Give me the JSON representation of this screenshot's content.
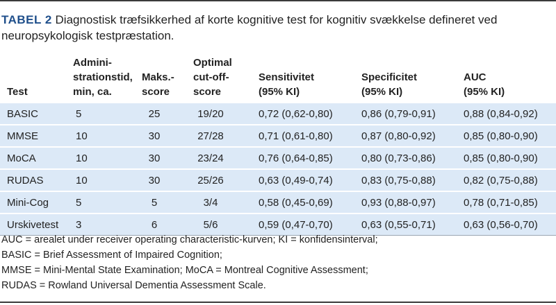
{
  "title": {
    "label": "TABEL 2",
    "text": "Diagnostisk træfsikkerhed af korte kognitive test for kognitiv svækkelse defineret ved neuropsykologisk testpræstation."
  },
  "headers": {
    "test": "Test",
    "admin": [
      "Admini-",
      "strationstid,",
      "min, ca."
    ],
    "maks": [
      "Maks.-",
      "score"
    ],
    "cutoff": [
      "Optimal",
      "cut-off-",
      "score"
    ],
    "sens": [
      "Sensitivitet",
      "(95% KI)"
    ],
    "spec": [
      "Specificitet",
      "(95% KI)"
    ],
    "auc": [
      "AUC",
      "(95% KI)"
    ]
  },
  "rows": [
    {
      "test": "BASIC",
      "admin": "5",
      "maks": "25",
      "cutoff": "19/20",
      "sens": "0,72 (0,62-0,80)",
      "spec": "0,86 (0,79-0,91)",
      "auc": "0,88 (0,84-0,92)"
    },
    {
      "test": "MMSE",
      "admin": "10",
      "maks": "30",
      "cutoff": "27/28",
      "sens": "0,71 (0,61-0,80)",
      "spec": "0,87 (0,80-0,92)",
      "auc": "0,85 (0,80-0,90)"
    },
    {
      "test": "MoCA",
      "admin": "10",
      "maks": "30",
      "cutoff": "23/24",
      "sens": "0,76 (0,64-0,85)",
      "spec": "0,80 (0,73-0,86)",
      "auc": "0,85 (0,80-0,90)"
    },
    {
      "test": "RUDAS",
      "admin": "10",
      "maks": "30",
      "cutoff": "25/26",
      "sens": "0,63 (0,49-0,74)",
      "spec": "0,83 (0,75-0,88)",
      "auc": "0,82 (0,75-0,88)"
    },
    {
      "test": "Mini-Cog",
      "admin": "5",
      "maks": "5",
      "cutoff": "3/4",
      "sens": "0,58 (0,45-0,69)",
      "spec": "0,93 (0,88-0,97)",
      "auc": "0,78 (0,71-0,85)"
    },
    {
      "test": "Urskivetest",
      "admin": "3",
      "maks": "6",
      "cutoff": "5/6",
      "sens": "0,59 (0,47-0,70)",
      "spec": "0,63 (0,55-0,71)",
      "auc": "0,63 (0,56-0,70)"
    }
  ],
  "notes": [
    "AUC = arealet under receiver operating characteristic-kurven; KI = konfidensinterval;",
    "BASIC = Brief Assessment of Impaired Cognition;",
    "MMSE = Mini-Mental State Examination; MoCA = Montreal Cognitive Assessment;",
    "RUDAS = Rowland Universal Dementia Assessment Scale."
  ],
  "colors": {
    "label": "#1f4f8b",
    "row_band": "#dce9f7",
    "rule": "#3a3a3a"
  }
}
